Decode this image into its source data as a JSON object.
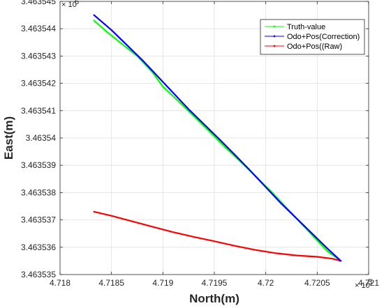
{
  "chart_data": {
    "type": "line",
    "title": "",
    "xlabel": "North(m)",
    "ylabel": "East(m)",
    "x_exponent_base": "× 10",
    "x_exponent_power": "5",
    "y_exponent_base": "× 10",
    "y_exponent_power": "6",
    "xlim": [
      471800,
      472100
    ],
    "ylim": [
      3463535,
      3463545
    ],
    "x_ticks": [
      471800,
      471850,
      471900,
      471950,
      472000,
      472050,
      472100
    ],
    "x_tick_labels": [
      "4.718",
      "4.7185",
      "4.719",
      "4.7195",
      "4.72",
      "4.7205",
      "4.721"
    ],
    "y_ticks": [
      3463535,
      3463536,
      3463537,
      3463538,
      3463539,
      3463540,
      3463541,
      3463542,
      3463543,
      3463544,
      3463545
    ],
    "y_tick_labels": [
      "3.463535",
      "3.463536",
      "3.463537",
      "3.463538",
      "3.463539",
      "3.46354",
      "3.463541",
      "3.463542",
      "3.463543",
      "3.463544",
      "3.463545"
    ],
    "grid": true,
    "legend_position": "top-right",
    "series": [
      {
        "name": "Truth-value",
        "color": "#00ff00",
        "x": [
          471833,
          471845,
          471860,
          471875,
          471890,
          471900,
          471915,
          471930,
          471945,
          471960,
          471975,
          471990,
          472005,
          472020,
          472035,
          472050,
          472060,
          472073
        ],
        "y": [
          3463544.3,
          3463543.9,
          3463543.45,
          3463543.0,
          3463542.4,
          3463541.88,
          3463541.35,
          3463540.8,
          3463540.25,
          3463539.68,
          3463539.15,
          3463538.6,
          3463538.05,
          3463537.45,
          3463536.85,
          3463536.25,
          3463535.85,
          3463535.5
        ]
      },
      {
        "name": "Odo+Pos(Correction)",
        "color": "#0000ff",
        "x": [
          471833,
          471850,
          471865,
          471880,
          471895,
          471910,
          471925,
          471940,
          471955,
          471970,
          471985,
          472000,
          472015,
          472030,
          472045,
          472060,
          472073
        ],
        "y": [
          3463544.5,
          3463543.95,
          3463543.4,
          3463542.85,
          3463542.25,
          3463541.65,
          3463541.05,
          3463540.5,
          3463539.95,
          3463539.38,
          3463538.8,
          3463538.2,
          3463537.6,
          3463537.05,
          3463536.5,
          3463535.95,
          3463535.5
        ]
      },
      {
        "name": "Odo+Pos((Raw)",
        "color": "#ff0000",
        "x": [
          471833,
          471850,
          471870,
          471890,
          471910,
          471930,
          471950,
          471970,
          471990,
          472010,
          472030,
          472050,
          472065,
          472073
        ],
        "y": [
          3463537.3,
          3463537.15,
          3463536.95,
          3463536.75,
          3463536.55,
          3463536.38,
          3463536.22,
          3463536.05,
          3463535.9,
          3463535.78,
          3463535.7,
          3463535.65,
          3463535.58,
          3463535.5
        ]
      }
    ]
  }
}
